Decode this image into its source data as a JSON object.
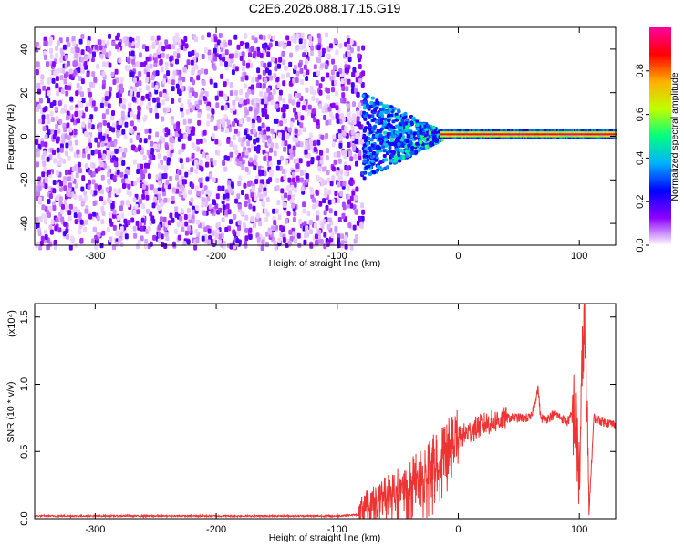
{
  "title": "C2E6.2026.088.17.15.G19",
  "chart_data": [
    {
      "type": "heatmap",
      "xlabel": "Height of straight line (km)",
      "ylabel": "Frequency (Hz)",
      "xlim": [
        -350,
        130
      ],
      "ylim": [
        -50,
        50
      ],
      "xticks": [
        -300,
        -200,
        -100,
        0,
        100
      ],
      "yticks": [
        -40,
        -20,
        0,
        20,
        40
      ],
      "colorbar": {
        "label": "Normalized spectral amplitude",
        "range": [
          0,
          1
        ],
        "ticks": [
          "0.0",
          "0.2",
          "0.4",
          "0.6",
          "0.8"
        ],
        "colors": [
          "#ffffff",
          "#8e00ff",
          "#0000ff",
          "#00b0ff",
          "#00ff80",
          "#c0ff00",
          "#ffb000",
          "#ff0000",
          "#ff00a0"
        ]
      },
      "description_regions": [
        {
          "x_range": [
            -350,
            -80
          ],
          "y_range": [
            -50,
            48
          ],
          "amplitude": [
            0.02,
            0.2
          ],
          "pattern": "noise"
        },
        {
          "x_range": [
            -80,
            -15
          ],
          "y_range": [
            -20,
            15
          ],
          "amplitude": [
            0.2,
            0.6
          ],
          "pattern": "converging"
        },
        {
          "x_range": [
            -15,
            130
          ],
          "y_range": [
            0,
            3
          ],
          "amplitude": [
            0.5,
            1.0
          ],
          "pattern": "carrier line near 1.5 Hz"
        }
      ]
    },
    {
      "type": "line",
      "xlabel": "Height of straight line (km)",
      "ylabel": "SNR (10 * v/v)",
      "y_multiplier": "(x10⁴)",
      "xlim": [
        -350,
        130
      ],
      "ylim": [
        0,
        1.6
      ],
      "xticks": [
        -300,
        -200,
        -100,
        0,
        100
      ],
      "yticks": [
        "0.0",
        "0.5",
        "1.0",
        "1.5"
      ],
      "color": "#ee3333",
      "series": [
        {
          "x": [
            -350,
            -300,
            -250,
            -200,
            -150,
            -100,
            -82,
            -78,
            -60,
            -40,
            -20,
            0,
            20,
            40,
            60,
            66,
            68,
            72,
            80,
            90,
            96,
            100,
            104,
            108,
            112,
            120,
            130
          ],
          "y": [
            0.02,
            0.02,
            0.02,
            0.02,
            0.02,
            0.02,
            0.03,
            0.12,
            0.2,
            0.3,
            0.45,
            0.6,
            0.7,
            0.75,
            0.75,
            0.97,
            0.75,
            0.74,
            0.78,
            0.72,
            0.8,
            0.3,
            1.6,
            0.05,
            0.75,
            0.72,
            0.7
          ]
        }
      ]
    }
  ]
}
